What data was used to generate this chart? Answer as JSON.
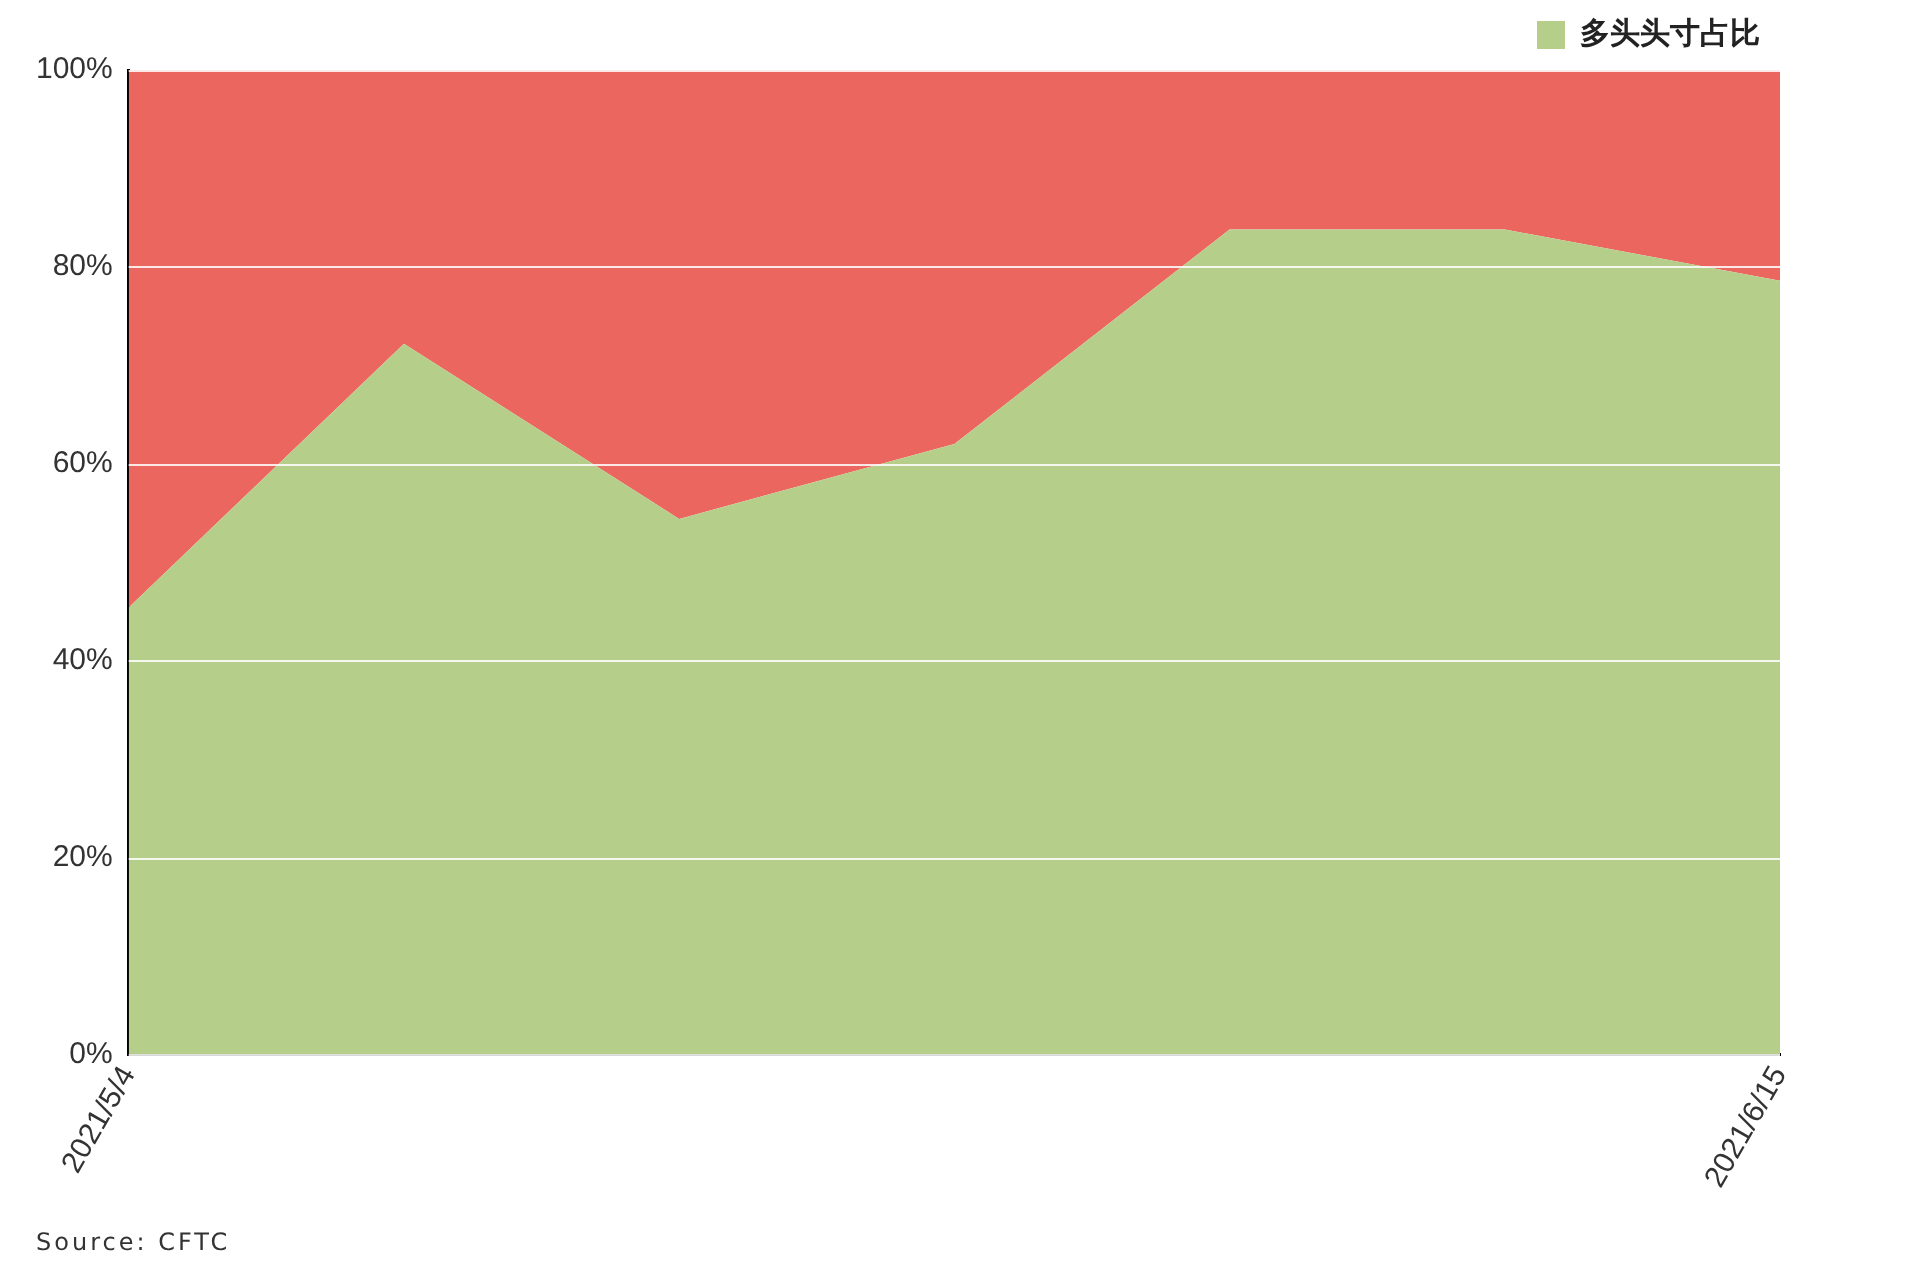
{
  "chart_data": {
    "type": "area",
    "stacked": true,
    "categories": [
      "2021/5/4",
      null,
      null,
      null,
      null,
      null,
      "2021/6/15"
    ],
    "series": [
      {
        "name": "多头头寸占比",
        "color": "#b5cf8a",
        "values": [
          45.4,
          72.2,
          54.4,
          62,
          83.8,
          83.8,
          78.6
        ]
      },
      {
        "color": "#ec6660",
        "values": [
          54.6,
          27.8,
          45.6,
          38,
          16.2,
          16.2,
          21.4
        ]
      }
    ],
    "ylim": [
      0,
      100
    ],
    "yticks": [
      {
        "value": 0,
        "label": "0%"
      },
      {
        "value": 20,
        "label": "20%"
      },
      {
        "value": 40,
        "label": "40%"
      },
      {
        "value": 60,
        "label": "60%"
      },
      {
        "value": 80,
        "label": "80%"
      },
      {
        "value": 100,
        "label": "100%"
      }
    ],
    "grid": "y",
    "legend": "top right",
    "annotations": [
      "Source: CFTC"
    ]
  }
}
